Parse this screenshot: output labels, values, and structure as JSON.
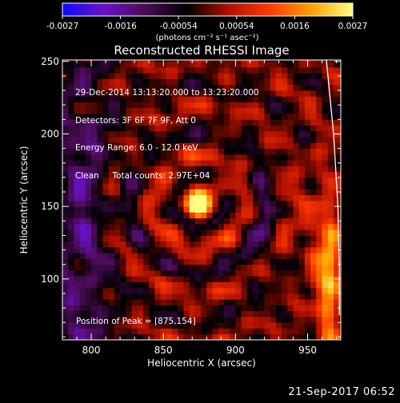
{
  "chart_data": {
    "type": "heatmap",
    "title": "Reconstructed RHESSI Image",
    "xlabel": "Heliocentric X (arcsec)",
    "ylabel": "Heliocentric Y (arcsec)",
    "xlim": [
      780,
      973
    ],
    "ylim": [
      58,
      251
    ],
    "xticks": [
      800,
      850,
      900,
      950
    ],
    "yticks": [
      100,
      150,
      200,
      250
    ],
    "colorbar": {
      "min": -0.0027,
      "max": 0.0027,
      "ticks": [
        "-0.0027",
        "-0.0016",
        "-0.00054",
        "0.00054",
        "0.0016",
        "0.0027"
      ],
      "unit_label": "(photons cm⁻² s⁻¹ asec⁻²)",
      "colors": [
        "#0b0bff",
        "#6a12c8",
        "#4a0c55",
        "#000000",
        "#b01000",
        "#ff3a00",
        "#ffa000",
        "#ffff80"
      ]
    },
    "annotations": [
      "29-Dec-2014 13:13:20.000 to 13:23:20.000",
      "Detectors: 3F 6F 7F 9F, Att 0",
      "Energy Range: 6.0 - 12.0 keV",
      "Clean     Total counts: 2.97E+04"
    ],
    "peak_label": "Position of Peak = [875,154]",
    "peak": [
      875,
      154
    ],
    "limb_curve": [
      [
        963,
        251
      ],
      [
        968,
        200
      ],
      [
        971,
        150
      ],
      [
        972,
        110
      ],
      [
        972,
        75
      ]
    ]
  },
  "footer_timestamp": "21-Sep-2017 06:52"
}
